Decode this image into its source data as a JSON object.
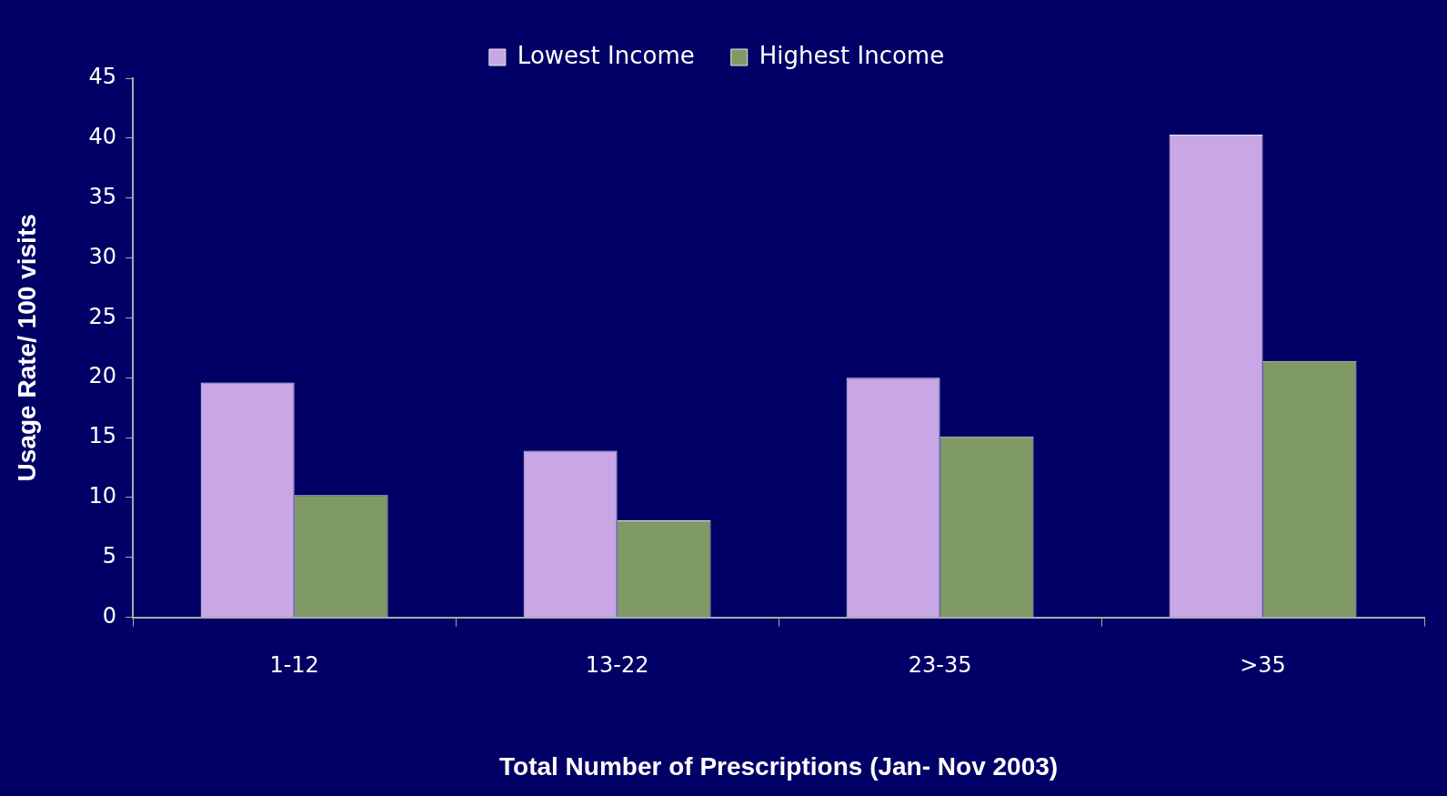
{
  "chart_data": {
    "type": "bar",
    "ylabel": "Usage Rate/ 100 visits",
    "xlabel": "Total Number of Prescriptions (Jan- Nov 2003)",
    "categories": [
      "1-12",
      "13-22",
      "23-35",
      ">35"
    ],
    "series": [
      {
        "name": "Lowest Income",
        "color": "#c9a6e6",
        "values": [
          19.6,
          13.9,
          20.0,
          40.3
        ]
      },
      {
        "name": "Highest Income",
        "color": "#7f9a65",
        "values": [
          10.2,
          8.1,
          15.1,
          21.4
        ]
      }
    ],
    "ylim": [
      0,
      45
    ],
    "yticks": [
      0,
      5,
      10,
      15,
      20,
      25,
      30,
      35,
      40,
      45
    ],
    "grid": false,
    "legend": "top"
  }
}
